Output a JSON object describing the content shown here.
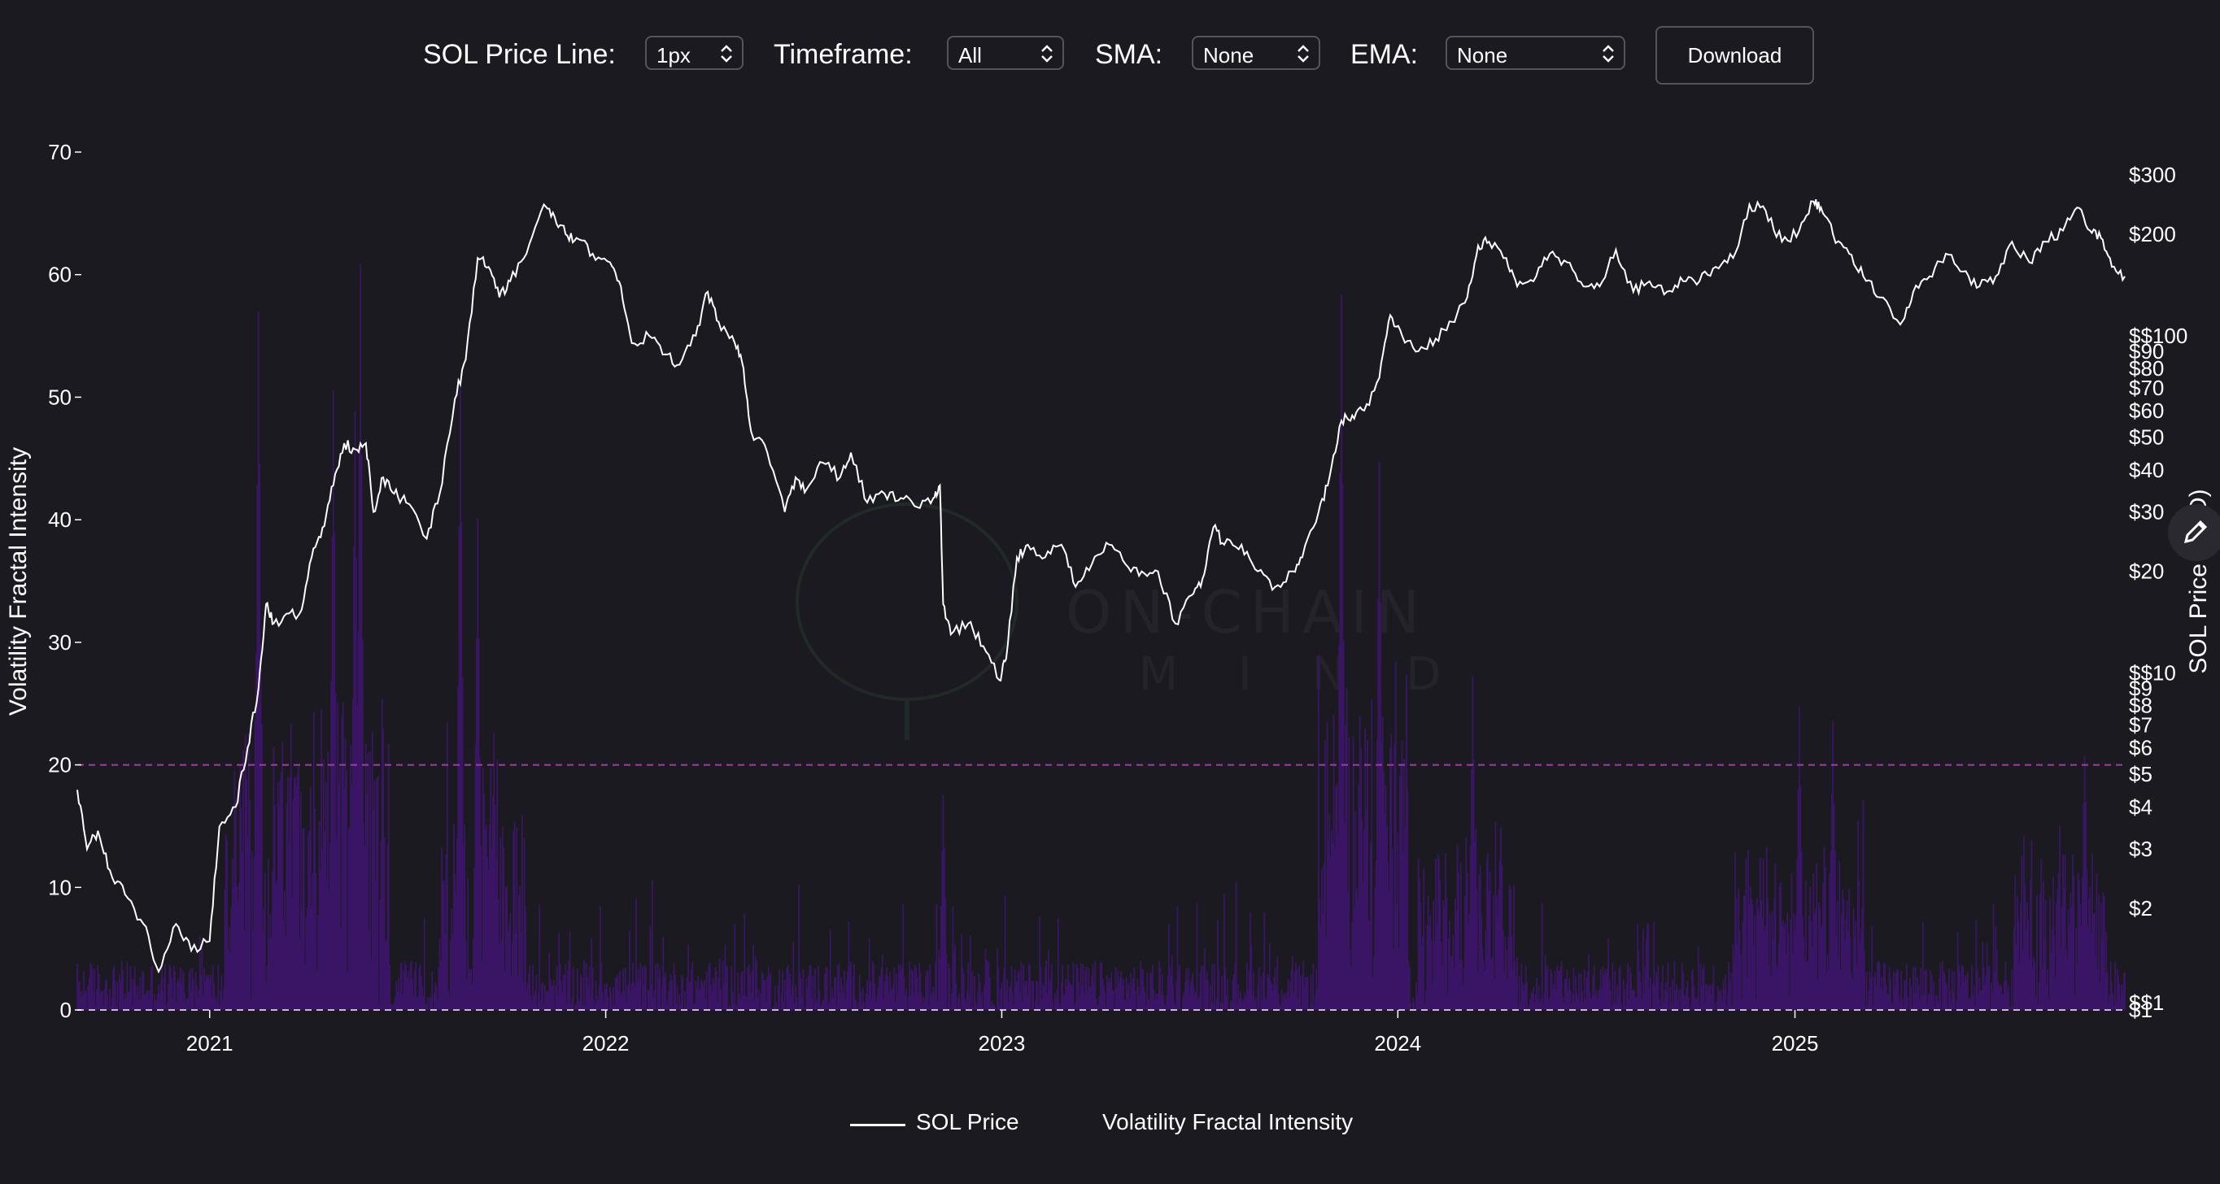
{
  "controls": {
    "price_line_label": "SOL Price Line:",
    "price_line_value": "1px",
    "timeframe_label": "Timeframe:",
    "timeframe_value": "All",
    "sma_label": "SMA:",
    "sma_value": "None",
    "ema_label": "EMA:",
    "ema_value": "None",
    "download_label": "Download"
  },
  "watermark": {
    "line1": "ON-CHAIN",
    "line2": "M I N D"
  },
  "legend": {
    "price": "SOL Price",
    "intensity": "Volatility Fractal Intensity"
  },
  "colors": {
    "background": "#1b1a20",
    "price_line": "#ffffff",
    "intensity_low": "#4a1f7a",
    "intensity_high": "#c8b8d2",
    "threshold_line": "#a03ca8"
  },
  "chart_data": {
    "type": "area+line",
    "title": "",
    "xlabel": "",
    "ylabel_left": "Volatility Fractal Intensity",
    "ylabel_right": "SOL Price (USD)",
    "left_ticks": [
      "0",
      "10",
      "20",
      "30",
      "40",
      "50",
      "60",
      "70"
    ],
    "left_ylim": [
      0,
      70
    ],
    "right_scale": "log",
    "right_ylim": [
      1,
      300
    ],
    "right_ticks": [
      {
        "v": 1,
        "label": "$1"
      },
      {
        "v": 1.05,
        "label": "$$1"
      },
      {
        "v": 2,
        "label": "$2"
      },
      {
        "v": 3,
        "label": "$3"
      },
      {
        "v": 4,
        "label": "$4"
      },
      {
        "v": 5,
        "label": "$5"
      },
      {
        "v": 6,
        "label": "$6"
      },
      {
        "v": 7,
        "label": "$7"
      },
      {
        "v": 8,
        "label": "$8"
      },
      {
        "v": 9,
        "label": "$9"
      },
      {
        "v": 10,
        "label": "$$10"
      },
      {
        "v": 20,
        "label": "$20"
      },
      {
        "v": 30,
        "label": "$30"
      },
      {
        "v": 40,
        "label": "$40"
      },
      {
        "v": 50,
        "label": "$50"
      },
      {
        "v": 60,
        "label": "$60"
      },
      {
        "v": 70,
        "label": "$70"
      },
      {
        "v": 80,
        "label": "$80"
      },
      {
        "v": 90,
        "label": "$90"
      },
      {
        "v": 100,
        "label": "$$100"
      },
      {
        "v": 200,
        "label": "$200"
      },
      {
        "v": 300,
        "label": "$300"
      }
    ],
    "x_ticks": [
      {
        "date": "2021-01-01",
        "label": "2021"
      },
      {
        "date": "2022-01-01",
        "label": "2022"
      },
      {
        "date": "2023-01-01",
        "label": "2023"
      },
      {
        "date": "2024-01-01",
        "label": "2024"
      },
      {
        "date": "2025-01-01",
        "label": "2025"
      }
    ],
    "x_range": [
      "2020-09-01",
      "2025-11-01"
    ],
    "threshold": 20,
    "price_series": {
      "name": "SOL Price",
      "points": [
        [
          "2020-09-01",
          4.5
        ],
        [
          "2020-09-10",
          3.0
        ],
        [
          "2020-09-20",
          3.4
        ],
        [
          "2020-10-01",
          2.6
        ],
        [
          "2020-10-15",
          2.2
        ],
        [
          "2020-11-01",
          1.8
        ],
        [
          "2020-11-15",
          1.3
        ],
        [
          "2020-12-01",
          1.8
        ],
        [
          "2020-12-15",
          1.5
        ],
        [
          "2021-01-01",
          1.6
        ],
        [
          "2021-01-10",
          3.5
        ],
        [
          "2021-01-25",
          4.0
        ],
        [
          "2021-02-05",
          6.0
        ],
        [
          "2021-02-15",
          9.0
        ],
        [
          "2021-02-22",
          16.0
        ],
        [
          "2021-03-01",
          14.0
        ],
        [
          "2021-03-15",
          15.0
        ],
        [
          "2021-03-25",
          15.0
        ],
        [
          "2021-04-05",
          22.0
        ],
        [
          "2021-04-15",
          27.0
        ],
        [
          "2021-04-25",
          36.0
        ],
        [
          "2021-05-05",
          48.0
        ],
        [
          "2021-05-15",
          46.0
        ],
        [
          "2021-05-25",
          48.0
        ],
        [
          "2021-06-01",
          30.0
        ],
        [
          "2021-06-10",
          38.0
        ],
        [
          "2021-06-20",
          34.0
        ],
        [
          "2021-07-01",
          32.0
        ],
        [
          "2021-07-20",
          25.0
        ],
        [
          "2021-08-01",
          34.0
        ],
        [
          "2021-08-15",
          65.0
        ],
        [
          "2021-08-25",
          85.0
        ],
        [
          "2021-09-05",
          170.0
        ],
        [
          "2021-09-15",
          160.0
        ],
        [
          "2021-09-25",
          130.0
        ],
        [
          "2021-10-05",
          145.0
        ],
        [
          "2021-10-20",
          175.0
        ],
        [
          "2021-11-05",
          245.0
        ],
        [
          "2021-11-15",
          225.0
        ],
        [
          "2021-11-25",
          200.0
        ],
        [
          "2021-12-05",
          195.0
        ],
        [
          "2021-12-20",
          175.0
        ],
        [
          "2022-01-05",
          165.0
        ],
        [
          "2022-01-15",
          140.0
        ],
        [
          "2022-01-25",
          95.0
        ],
        [
          "2022-02-10",
          100.0
        ],
        [
          "2022-02-25",
          88.0
        ],
        [
          "2022-03-10",
          82.0
        ],
        [
          "2022-03-25",
          100.0
        ],
        [
          "2022-04-05",
          135.0
        ],
        [
          "2022-04-15",
          110.0
        ],
        [
          "2022-04-30",
          95.0
        ],
        [
          "2022-05-08",
          80.0
        ],
        [
          "2022-05-15",
          52.0
        ],
        [
          "2022-05-30",
          45.0
        ],
        [
          "2022-06-15",
          30.0
        ],
        [
          "2022-06-25",
          38.0
        ],
        [
          "2022-07-05",
          35.0
        ],
        [
          "2022-07-20",
          42.0
        ],
        [
          "2022-08-05",
          38.0
        ],
        [
          "2022-08-15",
          45.0
        ],
        [
          "2022-08-30",
          32.0
        ],
        [
          "2022-09-15",
          34.0
        ],
        [
          "2022-09-30",
          33.0
        ],
        [
          "2022-10-15",
          31.0
        ],
        [
          "2022-10-30",
          33.0
        ],
        [
          "2022-11-05",
          36.0
        ],
        [
          "2022-11-08",
          16.0
        ],
        [
          "2022-11-15",
          13.0
        ],
        [
          "2022-12-01",
          14.0
        ],
        [
          "2022-12-15",
          12.0
        ],
        [
          "2022-12-30",
          9.5
        ],
        [
          "2023-01-05",
          11.0
        ],
        [
          "2023-01-15",
          22.0
        ],
        [
          "2023-01-25",
          24.0
        ],
        [
          "2023-02-10",
          22.0
        ],
        [
          "2023-02-25",
          24.0
        ],
        [
          "2023-03-10",
          18.0
        ],
        [
          "2023-03-25",
          21.0
        ],
        [
          "2023-04-10",
          24.0
        ],
        [
          "2023-04-25",
          21.0
        ],
        [
          "2023-05-10",
          20.0
        ],
        [
          "2023-05-25",
          20.0
        ],
        [
          "2023-06-10",
          14.0
        ],
        [
          "2023-06-25",
          17.0
        ],
        [
          "2023-07-05",
          19.0
        ],
        [
          "2023-07-15",
          27.0
        ],
        [
          "2023-07-25",
          24.0
        ],
        [
          "2023-08-10",
          24.0
        ],
        [
          "2023-08-25",
          20.0
        ],
        [
          "2023-09-10",
          18.0
        ],
        [
          "2023-09-25",
          20.0
        ],
        [
          "2023-10-05",
          22.0
        ],
        [
          "2023-10-20",
          30.0
        ],
        [
          "2023-10-30",
          38.0
        ],
        [
          "2023-11-10",
          56.0
        ],
        [
          "2023-11-20",
          58.0
        ],
        [
          "2023-12-01",
          60.0
        ],
        [
          "2023-12-15",
          75.0
        ],
        [
          "2023-12-25",
          115.0
        ],
        [
          "2024-01-05",
          100.0
        ],
        [
          "2024-01-20",
          90.0
        ],
        [
          "2024-02-05",
          98.0
        ],
        [
          "2024-02-20",
          110.0
        ],
        [
          "2024-03-05",
          130.0
        ],
        [
          "2024-03-15",
          185.0
        ],
        [
          "2024-03-25",
          190.0
        ],
        [
          "2024-04-10",
          170.0
        ],
        [
          "2024-04-20",
          140.0
        ],
        [
          "2024-05-05",
          145.0
        ],
        [
          "2024-05-20",
          175.0
        ],
        [
          "2024-06-05",
          165.0
        ],
        [
          "2024-06-20",
          140.0
        ],
        [
          "2024-07-05",
          140.0
        ],
        [
          "2024-07-20",
          180.0
        ],
        [
          "2024-08-05",
          135.0
        ],
        [
          "2024-08-20",
          145.0
        ],
        [
          "2024-09-05",
          135.0
        ],
        [
          "2024-09-20",
          145.0
        ],
        [
          "2024-10-05",
          145.0
        ],
        [
          "2024-10-20",
          160.0
        ],
        [
          "2024-11-05",
          170.0
        ],
        [
          "2024-11-20",
          245.0
        ],
        [
          "2024-12-05",
          235.0
        ],
        [
          "2024-12-20",
          190.0
        ],
        [
          "2025-01-05",
          205.0
        ],
        [
          "2025-01-18",
          250.0
        ],
        [
          "2025-01-25",
          240.0
        ],
        [
          "2025-02-05",
          200.0
        ],
        [
          "2025-02-20",
          175.0
        ],
        [
          "2025-03-05",
          150.0
        ],
        [
          "2025-03-20",
          130.0
        ],
        [
          "2025-04-08",
          108.0
        ],
        [
          "2025-04-20",
          135.0
        ],
        [
          "2025-05-05",
          150.0
        ],
        [
          "2025-05-20",
          175.0
        ],
        [
          "2025-06-05",
          155.0
        ],
        [
          "2025-06-20",
          140.0
        ],
        [
          "2025-07-05",
          150.0
        ],
        [
          "2025-07-20",
          190.0
        ],
        [
          "2025-08-05",
          165.0
        ],
        [
          "2025-08-20",
          190.0
        ],
        [
          "2025-09-05",
          205.0
        ],
        [
          "2025-09-18",
          240.0
        ],
        [
          "2025-09-30",
          205.0
        ],
        [
          "2025-10-10",
          195.0
        ],
        [
          "2025-10-20",
          160.0
        ],
        [
          "2025-11-01",
          150.0
        ]
      ]
    },
    "intensity_series": {
      "name": "Volatility Fractal Intensity",
      "peaks": [
        [
          "2021-02-15",
          57
        ],
        [
          "2021-04-25",
          50
        ],
        [
          "2021-05-15",
          48
        ],
        [
          "2021-05-20",
          60
        ],
        [
          "2021-08-20",
          51
        ],
        [
          "2021-09-05",
          40
        ],
        [
          "2021-09-20",
          22
        ],
        [
          "2022-11-08",
          16
        ],
        [
          "2023-11-10",
          57
        ],
        [
          "2023-12-15",
          43
        ],
        [
          "2024-03-10",
          26
        ],
        [
          "2025-01-05",
          23
        ],
        [
          "2025-02-05",
          22
        ],
        [
          "2025-09-25",
          20
        ]
      ],
      "active_ranges": [
        {
          "start": "2021-01-15",
          "end": "2021-06-15",
          "level": 22
        },
        {
          "start": "2021-08-01",
          "end": "2021-10-20",
          "level": 15
        },
        {
          "start": "2023-10-20",
          "end": "2024-01-10",
          "level": 24
        },
        {
          "start": "2024-01-20",
          "end": "2024-04-20",
          "level": 12
        },
        {
          "start": "2024-11-05",
          "end": "2025-03-05",
          "level": 10
        },
        {
          "start": "2025-07-20",
          "end": "2025-10-15",
          "level": 10
        }
      ]
    }
  }
}
